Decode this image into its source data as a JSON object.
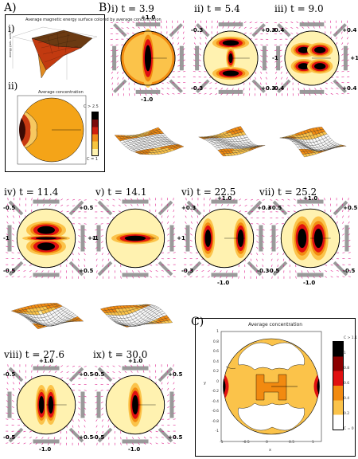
{
  "panel_A": {
    "label": "A)",
    "sub_i": "i)",
    "sub_ii": "ii)",
    "surface_title": "Average magnetic energy surface colored by average concentration",
    "conc_title": "Average concentration",
    "colorbar_top": "C > 2.5",
    "colorbar_bottom": "C = 1"
  },
  "panel_B": {
    "label": "B)",
    "snapshots": [
      {
        "label": "i) t = 3.9",
        "voltages": {
          "top": "+1.0",
          "bottom": "-1.0"
        }
      },
      {
        "label": "ii) t = 5.4",
        "voltages": {
          "tl": "-0.3",
          "tr": "+0.3",
          "bl": "-0.3",
          "br": "+0.3"
        }
      },
      {
        "label": "iii) t = 9.0",
        "voltages": {
          "tl": "-0.4",
          "tr": "+0.4",
          "bl": "-0.4",
          "br": "+0.4",
          "left": "-1",
          "right": "+1"
        }
      },
      {
        "label": "iv) t = 11.4",
        "voltages": {
          "tl": "-0.5",
          "tr": "+0.5",
          "bl": "-0.5",
          "br": "+0.5",
          "left": "-1",
          "right": "+1"
        }
      },
      {
        "label": "v) t = 14.1",
        "voltages": {
          "left": "-1",
          "right": "+1"
        }
      },
      {
        "label": "vi) t = 22.5",
        "voltages": {
          "top": "+1.0",
          "bottom": "-1.0",
          "tl": "+0.3",
          "tr": "+0.3",
          "bl": "-0.3",
          "br": "-0.3"
        }
      },
      {
        "label": "vii) t = 25.2",
        "voltages": {
          "top": "+1.0",
          "bottom": "-1.0",
          "tl": "+0.5",
          "tr": "+0.5",
          "bl": "-0.5",
          "br": "-0.5"
        }
      },
      {
        "label": "viii) t = 27.6",
        "voltages": {
          "top": "+1.0",
          "bottom": "-1.0",
          "tl": "-0.5",
          "tr": "+0.5",
          "bl": "-0.5",
          "br": "+0.5"
        }
      },
      {
        "label": "ix) t = 30.0",
        "voltages": {
          "top": "+1.0",
          "bottom": "-1.0",
          "tl": "-0.5",
          "tr": "+0.5",
          "bl": "-0.5",
          "br": "+0.5"
        }
      }
    ]
  },
  "panel_C": {
    "label": "C)",
    "title": "Average concentration",
    "colorbar_labels": [
      "C > 1.1",
      "1",
      "0.8",
      "0.6",
      "0.4",
      "0.2",
      "C = 0"
    ],
    "x_ticks": [
      "-1",
      "-0.5",
      "0",
      "0.5",
      "1"
    ],
    "y_ticks": [
      "1",
      "0.8",
      "0.6",
      "0.4",
      "0.2",
      "0",
      "-0.2",
      "-0.4",
      "-0.6",
      "-0.8",
      "-1"
    ],
    "xlabel": "x",
    "ylabel": "y"
  },
  "colors": {
    "hot_black": "#000000",
    "hot_dark_red": "#8b0000",
    "hot_red": "#e01010",
    "hot_orange": "#f28a10",
    "hot_yellow": "#fbc34a",
    "hot_pale": "#fff2b0",
    "arrow_magenta": "#e0208c",
    "electrode_gray": "#9a9a9a"
  }
}
